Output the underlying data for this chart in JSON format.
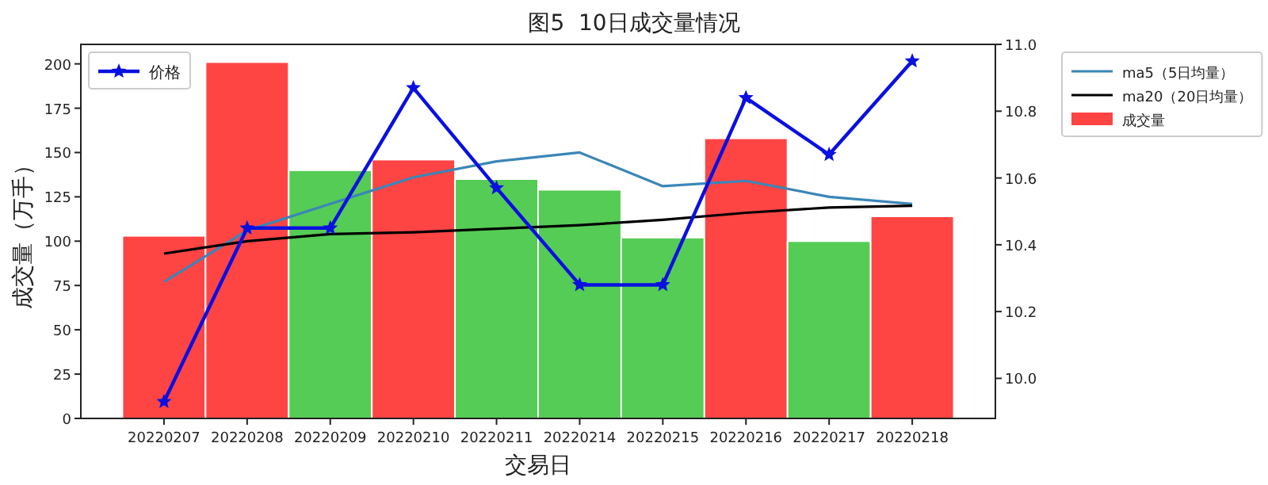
{
  "chart_data": {
    "type": "bar",
    "title": "图5  10日成交量情况",
    "xlabel": "交易日",
    "ylabel": "成交量（万手）",
    "categories": [
      "20220207",
      "20220208",
      "20220209",
      "20220210",
      "20220211",
      "20220214",
      "20220215",
      "20220216",
      "20220217",
      "20220218"
    ],
    "series": [
      {
        "name": "ma5（5日均量）",
        "type": "line",
        "color": "#3a86b8",
        "values": [
          77,
          106,
          121,
          136,
          145,
          150,
          131,
          134,
          125,
          121
        ]
      },
      {
        "name": "ma20（20日均量）",
        "type": "line",
        "color": "#000000",
        "values": [
          93,
          100,
          104,
          105,
          107,
          109,
          112,
          116,
          119,
          120
        ]
      },
      {
        "name": "成交量",
        "color": "#ff4444",
        "colors": [
          "#ff4444",
          "#ff4444",
          "#55cc55",
          "#ff4444",
          "#55cc55",
          "#55cc55",
          "#55cc55",
          "#ff4444",
          "#55cc55",
          "#ff4444"
        ],
        "values": [
          103,
          201,
          140,
          146,
          135,
          129,
          102,
          158,
          100,
          114
        ]
      },
      {
        "name": "价格",
        "type": "line",
        "axis": "y2",
        "marker": "star",
        "color": "#0a10e0",
        "values": [
          9.93,
          10.45,
          10.45,
          10.87,
          10.57,
          10.28,
          10.28,
          10.84,
          10.67,
          10.95
        ]
      }
    ],
    "ylim": [
      0,
      211
    ],
    "yticks": [
      0,
      25,
      50,
      75,
      100,
      125,
      150,
      175,
      200
    ],
    "y2lim": [
      9.88,
      11.0
    ],
    "y2ticks": [
      {
        "value": 10.0,
        "label": "10.0"
      },
      10.2,
      10.4,
      10.6,
      10.8,
      {
        "value": 11.0,
        "label": "11.0"
      }
    ],
    "legend": "top right",
    "grid": false
  }
}
